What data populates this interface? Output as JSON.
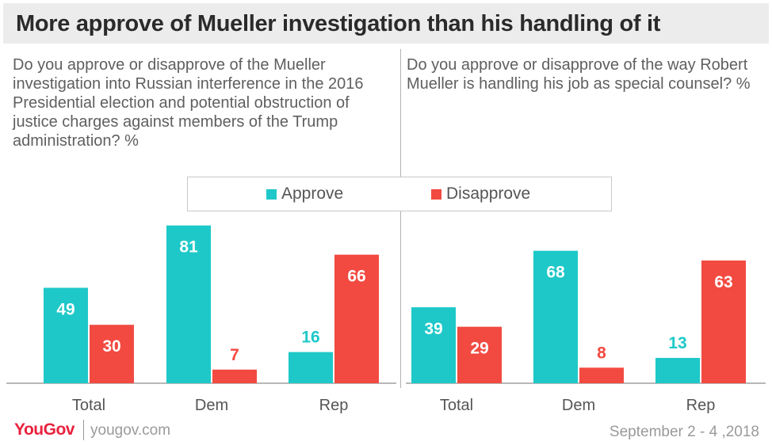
{
  "title": "More approve of Mueller investigation than his handling of it",
  "colors": {
    "approve": "#1ec8c8",
    "disapprove": "#f24a41",
    "axis": "#a0a0a0",
    "label_text": "#555555"
  },
  "legend": [
    {
      "label": "Approve",
      "color": "#1ec8c8"
    },
    {
      "label": "Disapprove",
      "color": "#f24a41"
    }
  ],
  "footer": {
    "logo": "YouGov",
    "site": "yougov.com",
    "date": "September 2 - 4 ,2018"
  },
  "chart_data": [
    {
      "type": "bar",
      "title": "Do you approve or disapprove of the Mueller investigation into Russian interference in the 2016 Presidential election and potential obstruction of justice charges against members of the Trump administration? %",
      "categories": [
        "Total",
        "Dem",
        "Rep"
      ],
      "series": [
        {
          "name": "Approve",
          "values": [
            49,
            81,
            16
          ]
        },
        {
          "name": "Disapprove",
          "values": [
            30,
            7,
            66
          ]
        }
      ],
      "ylim": [
        0,
        100
      ],
      "grid": false,
      "legend_position": "top"
    },
    {
      "type": "bar",
      "title": "Do you approve or disapprove of the way Robert Mueller is handling his job as special counsel? %",
      "categories": [
        "Total",
        "Dem",
        "Rep"
      ],
      "series": [
        {
          "name": "Approve",
          "values": [
            39,
            68,
            13
          ]
        },
        {
          "name": "Disapprove",
          "values": [
            29,
            8,
            63
          ]
        }
      ],
      "ylim": [
        0,
        100
      ],
      "grid": false,
      "legend_position": "top"
    }
  ]
}
